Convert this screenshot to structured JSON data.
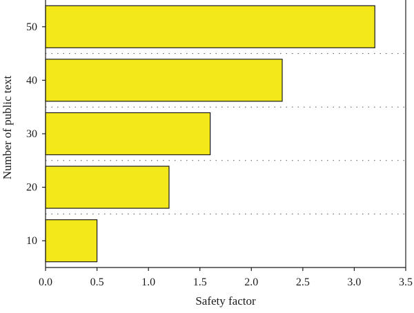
{
  "chart_data": {
    "type": "bar",
    "orientation": "horizontal",
    "categories": [
      "10",
      "20",
      "30",
      "40",
      "50"
    ],
    "values": [
      0.5,
      1.2,
      1.6,
      2.3,
      3.2
    ],
    "title": "",
    "xlabel": "Safety factor",
    "ylabel": "Number of public text",
    "xlim": [
      0,
      3.5
    ],
    "xticks": [
      "0.0",
      "0.5",
      "1.0",
      "1.5",
      "2.0",
      "2.5",
      "3.0",
      "3.5"
    ],
    "grid": "dotted horizontal separators between bars",
    "bar_color": "#f2e81a",
    "bar_edge_color": "#1a1a1a"
  }
}
